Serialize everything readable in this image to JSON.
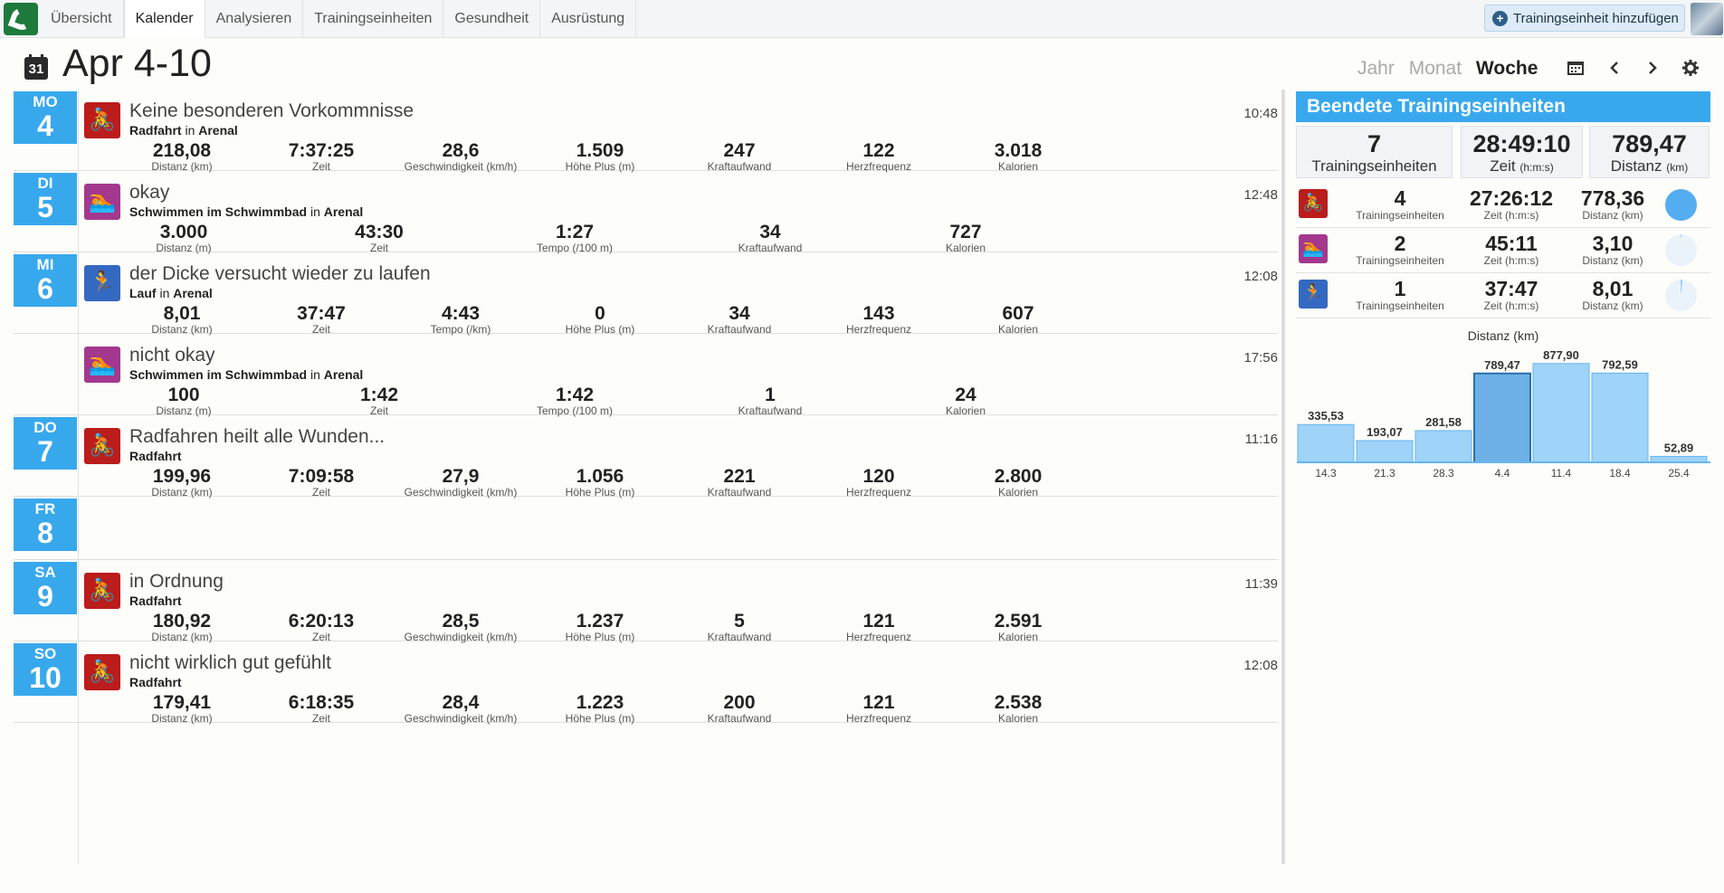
{
  "nav": {
    "tabs": [
      "Übersicht",
      "Kalender",
      "Analysieren",
      "Trainingseinheiten",
      "Gesundheit",
      "Ausrüstung"
    ],
    "active_tab": 1,
    "add_button": "Trainingseinheit hinzufügen"
  },
  "header": {
    "calendar_icon_day": "31",
    "title": "Apr 4-10",
    "views": [
      "Jahr",
      "Monat",
      "Woche"
    ],
    "active_view": "Woche"
  },
  "workouts": [
    {
      "day_name": "MO",
      "day_num": "4",
      "sport": "bike",
      "title": "Keine besonderen Vorkommnisse",
      "sport_label": "Radfahrt",
      "in_label": "in",
      "location": "Arenal",
      "time": "10:48",
      "stats": [
        {
          "v": "218,08",
          "l": "Distanz (km)"
        },
        {
          "v": "7:37:25",
          "l": "Zeit"
        },
        {
          "v": "28,6",
          "l": "Geschwindigkeit (km/h)"
        },
        {
          "v": "1.509",
          "l": "Höhe Plus (m)"
        },
        {
          "v": "247",
          "l": "Kraftaufwand"
        },
        {
          "v": "122",
          "l": "Herzfrequenz"
        },
        {
          "v": "3.018",
          "l": "Kalorien"
        }
      ]
    },
    {
      "day_name": "DI",
      "day_num": "5",
      "sport": "swim",
      "title": "okay",
      "sport_label": "Schwimmen im Schwimmbad",
      "in_label": "in",
      "location": "Arenal",
      "time": "12:48",
      "stats": [
        {
          "v": "3.000",
          "l": "Distanz (m)"
        },
        {
          "v": "43:30",
          "l": "Zeit"
        },
        {
          "v": "1:27",
          "l": "Tempo (/100 m)"
        },
        {
          "v": "34",
          "l": "Kraftaufwand"
        },
        {
          "v": "727",
          "l": "Kalorien"
        }
      ]
    },
    {
      "day_name": "MI",
      "day_num": "6",
      "sport": "run",
      "title": "der Dicke versucht wieder zu laufen",
      "sport_label": "Lauf",
      "in_label": "in",
      "location": "Arenal",
      "time": "12:08",
      "stats": [
        {
          "v": "8,01",
          "l": "Distanz (km)"
        },
        {
          "v": "37:47",
          "l": "Zeit"
        },
        {
          "v": "4:43",
          "l": "Tempo (/km)"
        },
        {
          "v": "0",
          "l": "Höhe Plus (m)"
        },
        {
          "v": "34",
          "l": "Kraftaufwand"
        },
        {
          "v": "143",
          "l": "Herzfrequenz"
        },
        {
          "v": "607",
          "l": "Kalorien"
        }
      ]
    },
    {
      "day_name": "",
      "day_num": "",
      "sport": "swim",
      "title": "nicht okay",
      "sport_label": "Schwimmen im Schwimmbad",
      "in_label": "in",
      "location": "Arenal",
      "time": "17:56",
      "stats": [
        {
          "v": "100",
          "l": "Distanz (m)"
        },
        {
          "v": "1:42",
          "l": "Zeit"
        },
        {
          "v": "1:42",
          "l": "Tempo (/100 m)"
        },
        {
          "v": "1",
          "l": "Kraftaufwand"
        },
        {
          "v": "24",
          "l": "Kalorien"
        }
      ]
    },
    {
      "day_name": "DO",
      "day_num": "7",
      "sport": "bike",
      "title": "Radfahren heilt alle Wunden...",
      "sport_label": "Radfahrt",
      "in_label": "",
      "location": "",
      "time": "11:16",
      "stats": [
        {
          "v": "199,96",
          "l": "Distanz (km)"
        },
        {
          "v": "7:09:58",
          "l": "Zeit"
        },
        {
          "v": "27,9",
          "l": "Geschwindigkeit (km/h)"
        },
        {
          "v": "1.056",
          "l": "Höhe Plus (m)"
        },
        {
          "v": "221",
          "l": "Kraftaufwand"
        },
        {
          "v": "120",
          "l": "Herzfrequenz"
        },
        {
          "v": "2.800",
          "l": "Kalorien"
        }
      ]
    },
    {
      "day_name": "FR",
      "day_num": "8",
      "sport": "",
      "title": "",
      "sport_label": "",
      "in_label": "",
      "location": "",
      "time": "",
      "stats": []
    },
    {
      "day_name": "SA",
      "day_num": "9",
      "sport": "bike",
      "title": "in Ordnung",
      "sport_label": "Radfahrt",
      "in_label": "",
      "location": "",
      "time": "11:39",
      "stats": [
        {
          "v": "180,92",
          "l": "Distanz (km)"
        },
        {
          "v": "6:20:13",
          "l": "Zeit"
        },
        {
          "v": "28,5",
          "l": "Geschwindigkeit (km/h)"
        },
        {
          "v": "1.237",
          "l": "Höhe Plus (m)"
        },
        {
          "v": "5",
          "l": "Kraftaufwand"
        },
        {
          "v": "121",
          "l": "Herzfrequenz"
        },
        {
          "v": "2.591",
          "l": "Kalorien"
        }
      ]
    },
    {
      "day_name": "SO",
      "day_num": "10",
      "sport": "bike",
      "title": "nicht wirklich gut gefühlt",
      "sport_label": "Radfahrt",
      "in_label": "",
      "location": "",
      "time": "12:08",
      "stats": [
        {
          "v": "179,41",
          "l": "Distanz (km)"
        },
        {
          "v": "6:18:35",
          "l": "Zeit"
        },
        {
          "v": "28,4",
          "l": "Geschwindigkeit (km/h)"
        },
        {
          "v": "1.223",
          "l": "Höhe Plus (m)"
        },
        {
          "v": "200",
          "l": "Kraftaufwand"
        },
        {
          "v": "121",
          "l": "Herzfrequenz"
        },
        {
          "v": "2.538",
          "l": "Kalorien"
        }
      ]
    }
  ],
  "summary": {
    "title": "Beendete Trainingseinheiten",
    "totals": [
      {
        "v": "7",
        "l": "Trainingseinheiten",
        "unit": ""
      },
      {
        "v": "28:49:10",
        "l": "Zeit",
        "unit": "(h:m:s)"
      },
      {
        "v": "789,47",
        "l": "Distanz",
        "unit": "(km)"
      }
    ],
    "sports": [
      {
        "sport": "bike",
        "count": "4",
        "count_l": "Trainingseinheiten",
        "time": "27:26:12",
        "time_l": "Zeit (h:m:s)",
        "dist": "778,36",
        "dist_l": "Distanz (km)",
        "share": 0.99
      },
      {
        "sport": "swim",
        "count": "2",
        "count_l": "Trainingseinheiten",
        "time": "45:11",
        "time_l": "Zeit (h:m:s)",
        "dist": "3,10",
        "dist_l": "Distanz (km)",
        "share": 0.004
      },
      {
        "sport": "run",
        "count": "1",
        "count_l": "Trainingseinheiten",
        "time": "37:47",
        "time_l": "Zeit (h:m:s)",
        "dist": "8,01",
        "dist_l": "Distanz (km)",
        "share": 0.01
      }
    ]
  },
  "chart_data": {
    "type": "bar",
    "title": "Distanz (km)",
    "categories": [
      "14.3",
      "21.3",
      "28.3",
      "4.4",
      "11.4",
      "18.4",
      "25.4"
    ],
    "values": [
      335.53,
      193.07,
      281.58,
      789.47,
      877.9,
      792.59,
      52.89
    ],
    "labels": [
      "335,53",
      "193,07",
      "281,58",
      "789,47",
      "877,90",
      "792,59",
      "52,89"
    ],
    "highlight_index": 3,
    "ylim": [
      0,
      900
    ],
    "colors": {
      "bar": "#9fd3f7",
      "bar_border": "#64b5ef",
      "highlight": "#6eb1e6",
      "highlight_border": "#2a6fae"
    }
  }
}
